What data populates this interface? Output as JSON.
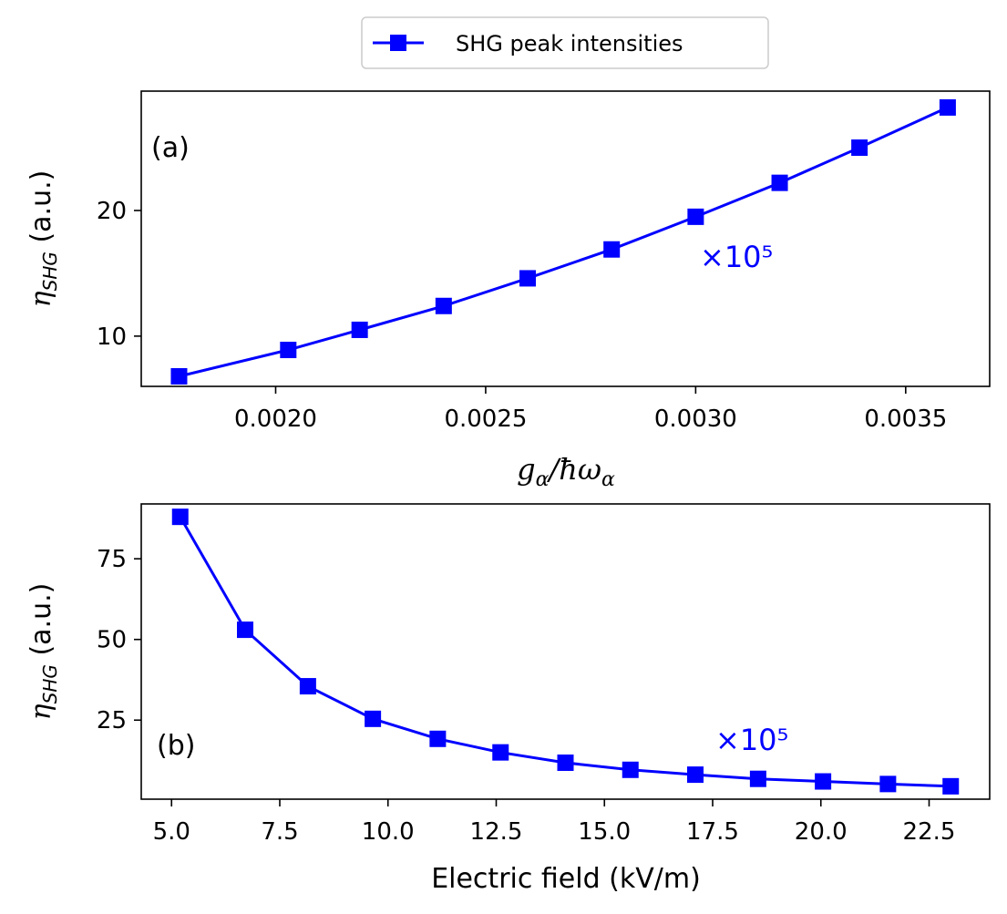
{
  "legend": {
    "label": "SHG peak intensities"
  },
  "colors": {
    "series": "#0000ff",
    "axes": "#000000"
  },
  "chart_data": [
    {
      "type": "line",
      "panel": "(a)",
      "title": "",
      "xlabel": "g_α/ħω_α",
      "ylabel": "η_SHG (a.u.)",
      "xlim": [
        0.00168,
        0.0037
      ],
      "ylim": [
        6.0,
        29.5
      ],
      "xticks": [
        0.002,
        0.0025,
        0.003,
        0.0035
      ],
      "xtick_labels": [
        "0.0020",
        "0.0025",
        "0.0030",
        "0.0035"
      ],
      "yticks": [
        10,
        20
      ],
      "ytick_labels": [
        "10",
        "20"
      ],
      "annotation": "×10⁵",
      "series": [
        {
          "name": "SHG peak intensities",
          "marker": "square",
          "x": [
            0.00177,
            0.00203,
            0.0022,
            0.0024,
            0.0026,
            0.0028,
            0.003,
            0.0032,
            0.00339,
            0.0036
          ],
          "y": [
            6.8,
            8.9,
            10.5,
            12.4,
            14.6,
            16.9,
            19.5,
            22.2,
            25.0,
            28.2
          ]
        }
      ]
    },
    {
      "type": "line",
      "panel": "(b)",
      "title": "",
      "xlabel": "Electric field (kV/m)",
      "ylabel": "η_SHG (a.u.)",
      "xlim": [
        4.3,
        23.9
      ],
      "ylim": [
        0.5,
        92.0
      ],
      "xticks": [
        5.0,
        7.5,
        10.0,
        12.5,
        15.0,
        17.5,
        20.0,
        22.5
      ],
      "xtick_labels": [
        "5.0",
        "7.5",
        "10.0",
        "12.5",
        "15.0",
        "17.5",
        "20.0",
        "22.5"
      ],
      "yticks": [
        25,
        50,
        75
      ],
      "ytick_labels": [
        "25",
        "50",
        "75"
      ],
      "annotation": "×10⁵",
      "series": [
        {
          "name": "SHG peak intensities",
          "marker": "square",
          "x": [
            5.2,
            6.7,
            8.15,
            9.65,
            11.15,
            12.6,
            14.1,
            15.6,
            17.1,
            18.55,
            20.05,
            21.55,
            23.0
          ],
          "y": [
            88.0,
            53.0,
            35.5,
            25.4,
            19.2,
            15.0,
            11.8,
            9.6,
            8.1,
            6.8,
            6.0,
            5.2,
            4.5
          ]
        }
      ]
    }
  ]
}
